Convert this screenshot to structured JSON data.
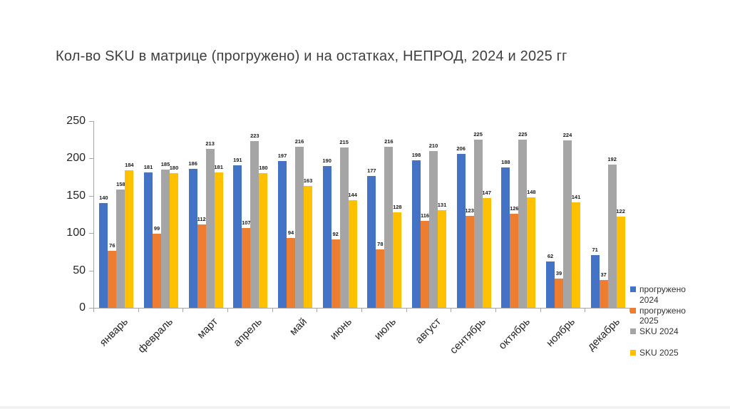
{
  "chart_data": {
    "type": "bar",
    "title": "Кол-во SKU в матрице (прогружено) и на остатках, НЕПРОД, 2024 и 2025 гг",
    "categories": [
      "январь",
      "февраль",
      "март",
      "апрель",
      "май",
      "июнь",
      "июль",
      "август",
      "сентябрь",
      "октябрь",
      "ноябрь",
      "декабрь"
    ],
    "series": [
      {
        "name": "прогружено 2024",
        "color": "#4472C4",
        "values": [
          140,
          181,
          186,
          191,
          197,
          190,
          177,
          198,
          206,
          188,
          62,
          71
        ]
      },
      {
        "name": "прогружено 2025",
        "color": "#ED7D31",
        "values": [
          76,
          99,
          112,
          107,
          94,
          92,
          78,
          116,
          123,
          126,
          39,
          37
        ]
      },
      {
        "name": "SKU 2024",
        "color": "#A5A5A5",
        "values": [
          158,
          185,
          213,
          223,
          216,
          215,
          216,
          210,
          225,
          225,
          224,
          192
        ]
      },
      {
        "name": "SKU 2025",
        "color": "#FFC000",
        "values": [
          184,
          180,
          181,
          180,
          163,
          144,
          128,
          131,
          147,
          148,
          141,
          122
        ]
      }
    ],
    "ylim": [
      0,
      250
    ],
    "yticks": [
      0,
      50,
      100,
      150,
      200,
      250
    ],
    "grid": false,
    "legend_position": "right",
    "data_labels": true,
    "axis_color": "#a6a6a6"
  }
}
